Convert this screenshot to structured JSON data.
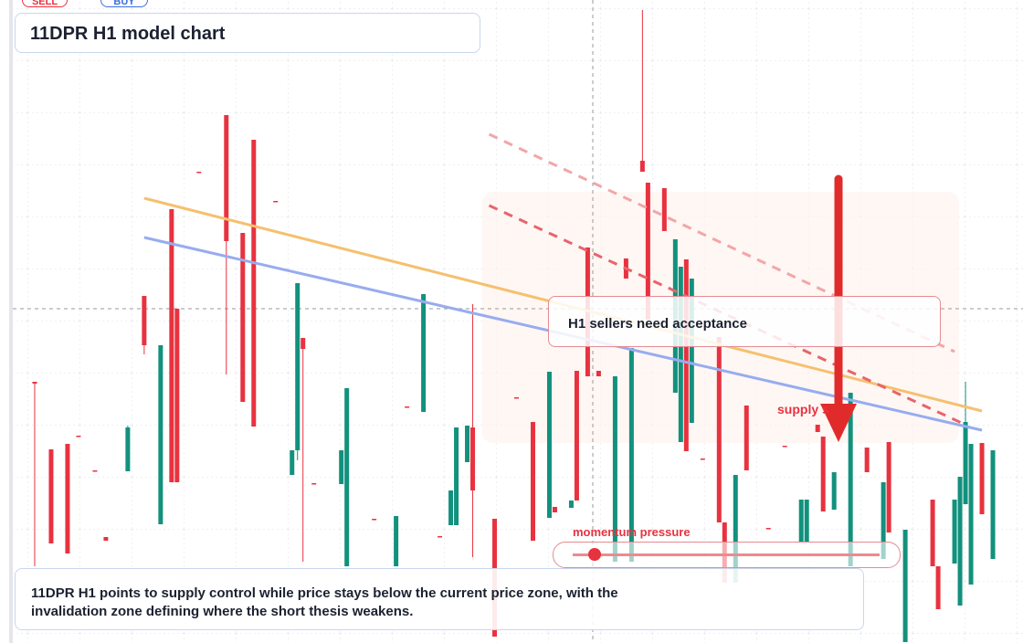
{
  "buttons": {
    "sell": "SELL",
    "buy": "BUY"
  },
  "header": {
    "title": "11DPR H1 model chart"
  },
  "chart_data": {
    "type": "candlestick",
    "up_color": "#12917d",
    "down_color": "#e8323f",
    "xlim": [
      -4,
      180.5
    ],
    "ylim": [
      0,
      704
    ],
    "x": [
      0,
      3,
      6,
      8,
      11,
      13,
      17,
      20,
      23,
      25,
      26,
      30,
      35,
      38,
      40,
      44,
      47,
      48,
      49,
      51,
      56,
      57,
      62,
      66,
      68,
      71,
      74,
      76,
      77,
      79,
      80,
      84,
      88,
      91,
      94,
      95,
      98,
      99,
      101,
      103,
      106,
      108,
      109,
      111,
      112,
      115,
      117,
      118,
      119,
      120,
      122,
      125,
      126,
      128,
      130,
      134,
      137,
      140,
      141,
      143,
      144,
      146,
      149,
      152,
      155,
      156,
      159,
      164,
      165,
      168,
      169,
      170,
      171,
      173,
      175
    ],
    "candles": [
      [
        286,
        286,
        84,
        284
      ],
      [
        212,
        212,
        109,
        109
      ],
      [
        218,
        218,
        98,
        98
      ],
      [
        227,
        227,
        226,
        226
      ],
      [
        189,
        189,
        188,
        188
      ],
      [
        116,
        116,
        112,
        112
      ],
      [
        188,
        238,
        188,
        236
      ],
      [
        380,
        380,
        316,
        326
      ],
      [
        130,
        326,
        130,
        326
      ],
      [
        475,
        475,
        176,
        176
      ],
      [
        366,
        366,
        176,
        176
      ],
      [
        516,
        516,
        515,
        515
      ],
      [
        578,
        578,
        294,
        440
      ],
      [
        449,
        449,
        264,
        264
      ],
      [
        551,
        551,
        237,
        237
      ],
      [
        484,
        484,
        483,
        483
      ],
      [
        184,
        211,
        184,
        211
      ],
      [
        211,
        394,
        200,
        394
      ],
      [
        334,
        334,
        89,
        322
      ],
      [
        175,
        175,
        174,
        174
      ],
      [
        174,
        211,
        174,
        211
      ],
      [
        84,
        279,
        84,
        279
      ],
      [
        136,
        136,
        135,
        135
      ],
      [
        84,
        139,
        84,
        139
      ],
      [
        259,
        259,
        258,
        258
      ],
      [
        253,
        382,
        253,
        382
      ],
      [
        117,
        117,
        116,
        116
      ],
      [
        129,
        167,
        129,
        167
      ],
      [
        129,
        236,
        129,
        236
      ],
      [
        198,
        238,
        198,
        238
      ],
      [
        236,
        371,
        94,
        167
      ],
      [
        136,
        136,
        7,
        7
      ],
      [
        269,
        269,
        268,
        268
      ],
      [
        242,
        242,
        112,
        112
      ],
      [
        137,
        297,
        137,
        297
      ],
      [
        149,
        149,
        143,
        143
      ],
      [
        148,
        156,
        148,
        156
      ],
      [
        298,
        298,
        156,
        156
      ],
      [
        433,
        433,
        292,
        292
      ],
      [
        298,
        298,
        292,
        292
      ],
      [
        89,
        292,
        89,
        292
      ],
      [
        421,
        421,
        399,
        399
      ],
      [
        89,
        323,
        89,
        323
      ],
      [
        528,
        693,
        516,
        516
      ],
      [
        504,
        504,
        354,
        354
      ],
      [
        498,
        498,
        451,
        451
      ],
      [
        274,
        442,
        274,
        442
      ],
      [
        220,
        412,
        220,
        412
      ],
      [
        420,
        420,
        210,
        210
      ],
      [
        241,
        399,
        241,
        399
      ],
      [
        202,
        202,
        201,
        201
      ],
      [
        335,
        335,
        132,
        132
      ],
      [
        132,
        132,
        66,
        66
      ],
      [
        66,
        184,
        66,
        184
      ],
      [
        260,
        260,
        189,
        189
      ],
      [
        126,
        126,
        125,
        125
      ],
      [
        216,
        216,
        215,
        215
      ],
      [
        110,
        157,
        110,
        157
      ],
      [
        110,
        157,
        110,
        157
      ],
      [
        239,
        239,
        231,
        231
      ],
      [
        226,
        226,
        144,
        144
      ],
      [
        146,
        187,
        146,
        187
      ],
      [
        84,
        274,
        84,
        274
      ],
      [
        214,
        214,
        187,
        187
      ],
      [
        92,
        176,
        92,
        176
      ],
      [
        220,
        220,
        121,
        121
      ],
      [
        1,
        124,
        1,
        124
      ],
      [
        157,
        157,
        84,
        84
      ],
      [
        84,
        84,
        37,
        37
      ],
      [
        87,
        157,
        87,
        157
      ],
      [
        41,
        182,
        41,
        182
      ],
      [
        152,
        286,
        152,
        242
      ],
      [
        64,
        218,
        64,
        218
      ],
      [
        219,
        219,
        141,
        141
      ],
      [
        92,
        211,
        92,
        211
      ]
    ],
    "lines": [
      {
        "color": "#f5c06e",
        "dash": false,
        "x": [
          20,
          173
        ],
        "values": [
          487,
          254
        ]
      },
      {
        "color": "#97acef",
        "dash": false,
        "x": [
          20,
          173
        ],
        "values": [
          444,
          233
        ]
      },
      {
        "color": "#e8646c",
        "dash": true,
        "x": [
          83,
          170
        ],
        "values": [
          479,
          239
        ]
      },
      {
        "color": "#f2a6a8",
        "dash": true,
        "x": [
          83,
          168
        ],
        "values": [
          557,
          319
        ]
      }
    ]
  },
  "callouts": {
    "acceptance": "H1 sellers need acceptance",
    "supply": "supply s",
    "momentum": "momentum pressure"
  },
  "footer": {
    "text": "11DPR H1 points to supply control while price stays below the current price zone, with the invalidation zone defining where the short thesis weakens."
  }
}
